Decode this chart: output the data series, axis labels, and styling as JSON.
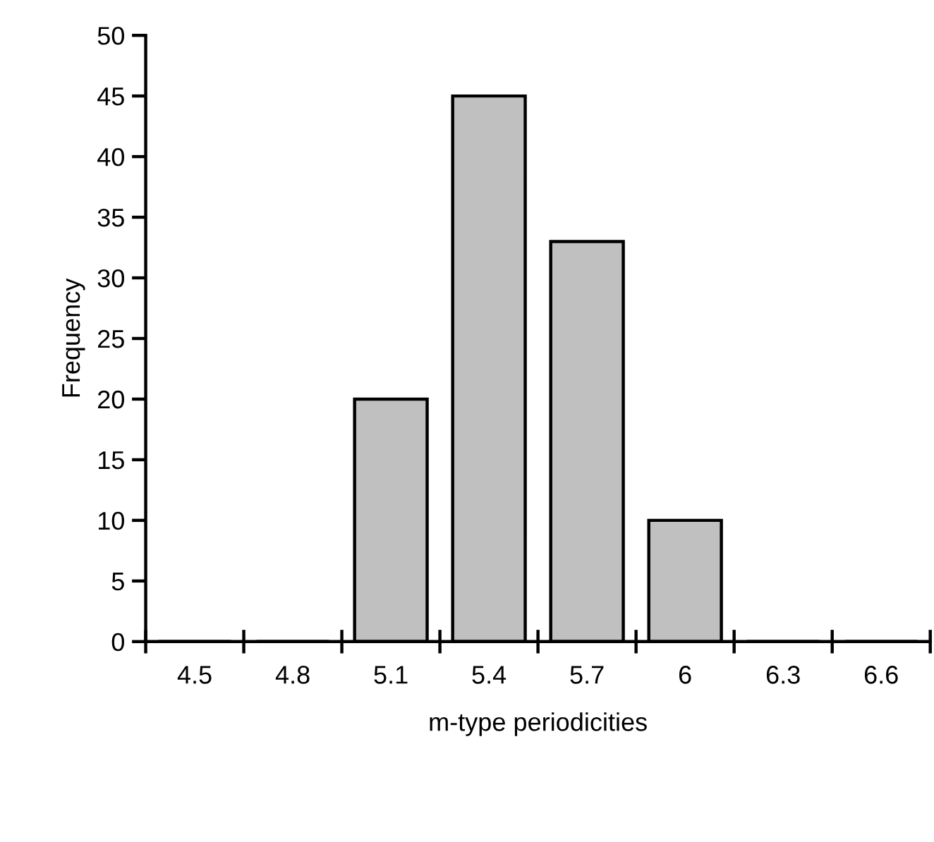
{
  "chart_data": {
    "type": "bar",
    "xlabel": "m-type periodicities",
    "ylabel": "Frequency",
    "categories": [
      "4.5",
      "4.8",
      "5.1",
      "5.4",
      "5.7",
      "6",
      "6.3",
      "6.6"
    ],
    "values": [
      0,
      0,
      20,
      45,
      33,
      10,
      0,
      0
    ],
    "color": "#c0c0c0",
    "ylim": [
      0,
      50
    ],
    "yticks": [
      0,
      5,
      10,
      15,
      20,
      25,
      30,
      35,
      40,
      45,
      50
    ],
    "grid": false,
    "legend": false
  }
}
